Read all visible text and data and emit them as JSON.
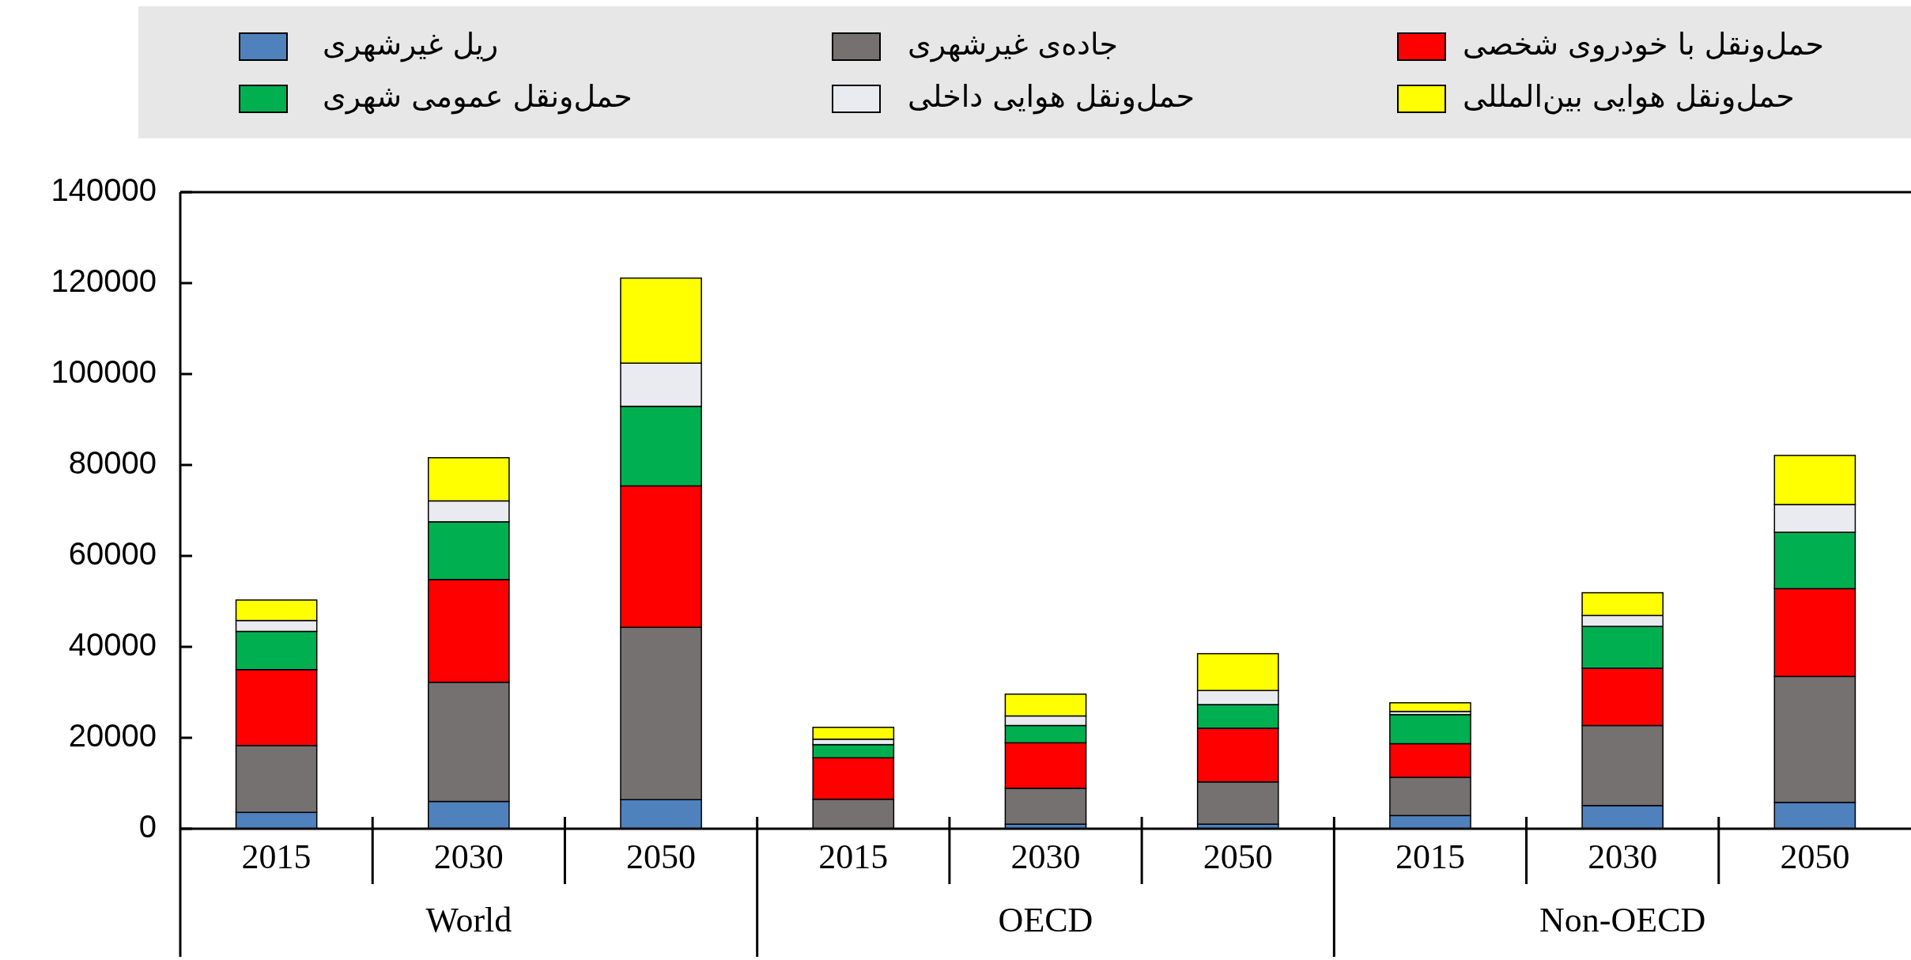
{
  "chart_data": {
    "type": "bar",
    "stacked": true,
    "legend": "top",
    "categories": [
      "2015",
      "2030",
      "2050",
      "2015",
      "2030",
      "2050",
      "2015",
      "2030",
      "2050"
    ],
    "annotations": [
      "World",
      "OECD",
      "Non-OECD"
    ],
    "series": [
      {
        "name": "ریل غیرشهری",
        "color": "#4f81bd",
        "values": [
          3600,
          6000,
          6400,
          null,
          1000,
          1000,
          2900,
          5100,
          5800
        ]
      },
      {
        "name": "جاده‌ی غیرشهری",
        "color": "#767171",
        "values": [
          14700,
          26200,
          37900,
          6500,
          7900,
          9300,
          8400,
          17600,
          27700
        ]
      },
      {
        "name": "حمل‌ونقل با خودروی شخصی",
        "color": "#ff0000",
        "values": [
          16700,
          22600,
          31100,
          9100,
          10000,
          11800,
          7400,
          12600,
          19300
        ]
      },
      {
        "name": "حمل‌ونقل عمومی شهری",
        "color": "#00b050",
        "values": [
          8400,
          12700,
          17500,
          2900,
          3800,
          5200,
          6400,
          9200,
          12400
        ]
      },
      {
        "name": "حمل‌ونقل هوایی داخلی",
        "color": "#e9ebf0",
        "values": [
          2400,
          4600,
          9500,
          1200,
          2100,
          3100,
          700,
          2400,
          6100
        ]
      },
      {
        "name": "حمل‌ونقل هوایی بین‌المللی",
        "color": "#ffff00",
        "values": [
          4500,
          9500,
          18700,
          2600,
          4800,
          8100,
          1900,
          5000,
          10800
        ]
      }
    ],
    "ylim": [
      0,
      140000
    ],
    "yticks": [
      0,
      20000,
      40000,
      60000,
      80000,
      100000,
      120000,
      140000
    ]
  }
}
